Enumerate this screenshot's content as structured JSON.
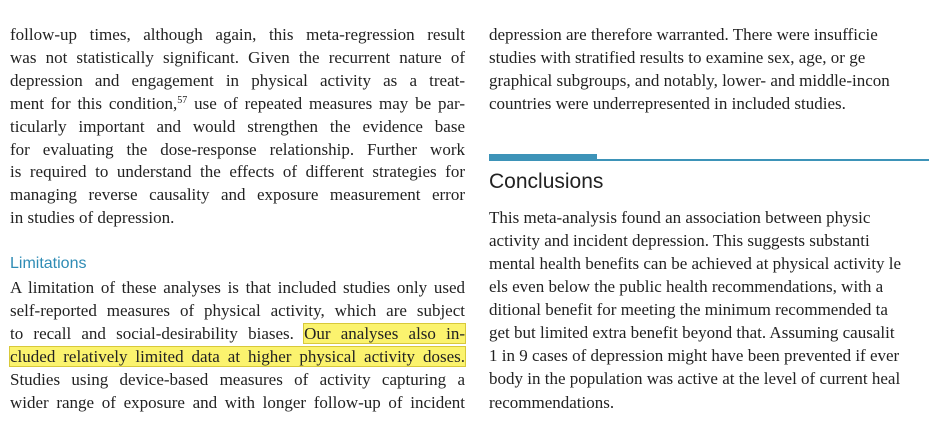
{
  "left_column": {
    "paragraph_1": [
      "follow-up times, although again, this meta-regression result",
      "was not statistically significant. Given the recurrent nature of",
      "depression and engagement in physical activity as a treat-",
      [
        "ment for this condition,",
        "57",
        "use of repeated measures may be par-"
      ],
      "ticularly important and would strengthen the evidence base",
      "for evaluating the dose-response relationship. Further work",
      "is required to understand the effects of different strategies for",
      "managing reverse causality and exposure measurement error",
      "in studies of depression."
    ],
    "limitations_heading": "Limitations",
    "limitations_paragraph": [
      "A limitation of these analyses is that included studies only used",
      "self-reported measures of physical activity, which are subject",
      [
        "to recall and social-desirability biases.",
        "Our analyses also in-"
      ],
      "cluded relatively limited data at higher physical activity doses.",
      "Studies using device-based measures of activity capturing a",
      "wider range of exposure and with longer follow-up of incident"
    ]
  },
  "right_column": {
    "paragraph_1": [
      "depression are therefore warranted. There were insufficie",
      "studies with stratified results to examine sex, age, or ge",
      "graphical subgroups, and notably, lower- and middle-incon",
      "countries were underrepresented in included studies."
    ],
    "conclusions_heading": "Conclusions",
    "conclusions_paragraph": [
      "This meta-analysis found an association between physic",
      "activity and incident depression. This suggests substanti",
      "mental health benefits can be achieved at physical activity le",
      "els even below the public health recommendations, with a",
      "ditional benefit for meeting the minimum recommended ta",
      "get but limited extra benefit beyond that. Assuming causalit",
      "1 in 9 cases of depression might have been prevented if ever",
      "body in the population was active at the level of current heal",
      "recommendations."
    ]
  }
}
